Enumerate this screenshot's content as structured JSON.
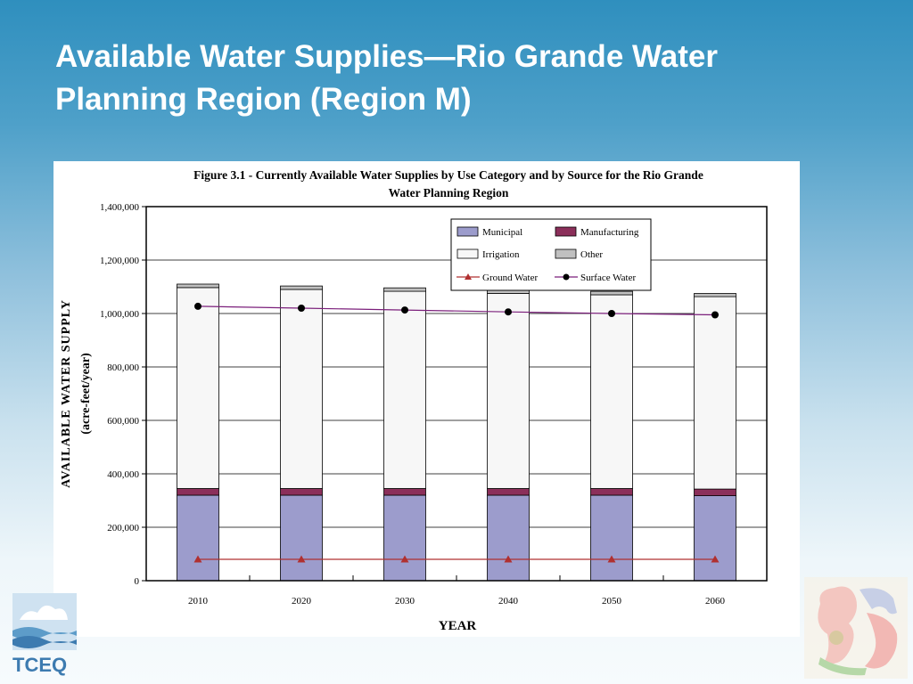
{
  "slide": {
    "title_line1": "Available Water Supplies—Rio Grande Water",
    "title_line2": "Planning Region (Region M)"
  },
  "logos": {
    "tceq_text": "TCEQ",
    "tceq_icon": "tceq-logo-icon",
    "emblem_icon": "texas-mexico-emblem-icon"
  },
  "chart_data": {
    "type": "bar",
    "stacked": true,
    "title_line1": "Figure 3.1 - Currently Available Water Supplies by Use Category and by Source for the Rio Grande",
    "title_line2": "Water Planning Region",
    "xlabel": "YEAR",
    "ylabel_line1": "AVAILABLE WATER SUPPLY",
    "ylabel_line2": "(acre-feet/year)",
    "ylim": [
      0,
      1400000
    ],
    "y_ticks": [
      0,
      200000,
      400000,
      600000,
      800000,
      1000000,
      1200000,
      1400000
    ],
    "y_tick_labels": [
      "0",
      "200,000",
      "400,000",
      "600,000",
      "800,000",
      "1,000,000",
      "1,200,000",
      "1,400,000"
    ],
    "grid": true,
    "legend_position": "top-right",
    "categories": [
      "2010",
      "2020",
      "2030",
      "2040",
      "2050",
      "2060"
    ],
    "series": [
      {
        "name": "Municipal",
        "kind": "bar",
        "color": "#9c9ccc",
        "values": [
          320000,
          320000,
          320000,
          320000,
          320000,
          318000
        ]
      },
      {
        "name": "Manufacturing",
        "kind": "bar",
        "color": "#8b2f5a",
        "values": [
          25000,
          25000,
          25000,
          25000,
          25000,
          25000
        ]
      },
      {
        "name": "Irrigation",
        "kind": "bar",
        "color": "#f7f7f7",
        "values": [
          752000,
          745000,
          738000,
          730000,
          725000,
          720000
        ]
      },
      {
        "name": "Other",
        "kind": "bar",
        "color": "#c0c0c0",
        "values": [
          13000,
          13000,
          13000,
          13000,
          13000,
          12000
        ]
      },
      {
        "name": "Ground Water",
        "kind": "line",
        "marker": "triangle",
        "color": "#b03030",
        "values": [
          80000,
          80000,
          80000,
          80000,
          80000,
          80000
        ]
      },
      {
        "name": "Surface Water",
        "kind": "line",
        "marker": "circle",
        "color": "#7b1f7b",
        "values": [
          1027000,
          1020000,
          1013000,
          1006000,
          1000000,
          995000
        ]
      }
    ]
  }
}
